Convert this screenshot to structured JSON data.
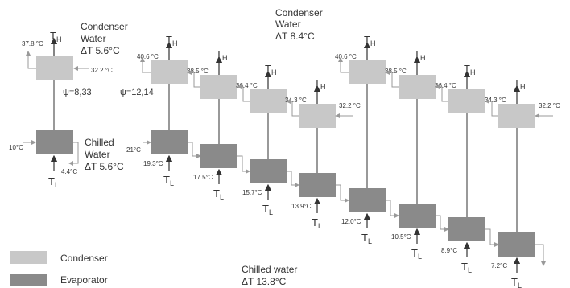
{
  "colors": {
    "condenser": "#c8c8c8",
    "evaporator": "#8a8a8a",
    "line": "#333333",
    "pipe": "#999999"
  },
  "left_system": {
    "condenser_water": {
      "title_line1": "Condenser",
      "title_line2": "Water",
      "delta": "ΔT 5.6°C",
      "in": "32.2 °C",
      "out": "37.8 °C"
    },
    "chilled_water": {
      "title_line1": "Chilled",
      "title_line2": "Water",
      "delta": "ΔT 5.6°C",
      "in": "10°C",
      "out": "4.4°C"
    },
    "psi": "ψ=8,33"
  },
  "right_system": {
    "condenser_water": {
      "title_line1": "Condenser",
      "title_line2": "Water",
      "delta": "ΔT 8.4°C"
    },
    "psi": "ψ=12,14",
    "chilled_in": "21°C",
    "chilled_label_line1": "Chilled water",
    "chilled_label_line2": "ΔT 13.8°C",
    "cond_temps": [
      "40.6 °C",
      "38.5 °C",
      "36.4 °C",
      "34.3 °C",
      "32.2 °C"
    ],
    "evap_temps": [
      "19.3°C",
      "17.5°C",
      "15.7°C",
      "13.9°C",
      "12.0°C",
      "10.5°C",
      "8.9°C",
      "7.2°C"
    ]
  },
  "th": "T",
  "th_sub": "H",
  "tl": "T",
  "tl_sub": "L",
  "legend": [
    {
      "label": "Condenser",
      "kind": "condenser"
    },
    {
      "label": "Evaporator",
      "kind": "evaporator"
    }
  ]
}
